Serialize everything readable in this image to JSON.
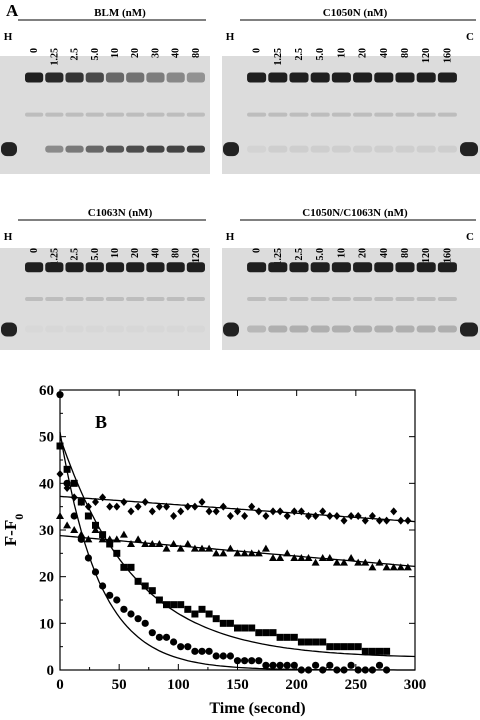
{
  "panel_a": {
    "label": "A",
    "gels": [
      {
        "title": "BLM (nM)",
        "left_label": "H",
        "right_label": "",
        "lanes": [
          "0",
          "1.25",
          "2.5",
          "5.0",
          "10",
          "20",
          "30",
          "40",
          "80"
        ],
        "substrate_intensity": [
          0.95,
          0.9,
          0.85,
          0.75,
          0.6,
          0.55,
          0.5,
          0.45,
          0.4
        ],
        "product_intensity": [
          0.0,
          0.45,
          0.55,
          0.65,
          0.75,
          0.8,
          0.85,
          0.85,
          0.9
        ]
      },
      {
        "title": "C1050N (nM)",
        "left_label": "H",
        "right_label": "C",
        "lanes": [
          "0",
          "1.25",
          "2.5",
          "5.0",
          "10",
          "20",
          "40",
          "80",
          "120",
          "160"
        ],
        "substrate_intensity": [
          0.95,
          0.95,
          0.95,
          0.95,
          0.95,
          0.95,
          0.95,
          0.95,
          0.95,
          0.95
        ],
        "product_intensity": [
          0.05,
          0.08,
          0.08,
          0.08,
          0.08,
          0.08,
          0.08,
          0.08,
          0.08,
          0.08
        ]
      },
      {
        "title": "C1063N (nM)",
        "left_label": "H",
        "right_label": "",
        "lanes": [
          "0",
          "1.25",
          "2.5",
          "5.0",
          "10",
          "20",
          "40",
          "80",
          "120"
        ],
        "substrate_intensity": [
          0.95,
          0.95,
          0.95,
          0.95,
          0.95,
          0.95,
          0.95,
          0.95,
          0.95
        ],
        "product_intensity": [
          0.02,
          0.03,
          0.03,
          0.03,
          0.03,
          0.03,
          0.03,
          0.03,
          0.03
        ]
      },
      {
        "title": "C1050N/C1063N (nM)",
        "left_label": "H",
        "right_label": "C",
        "lanes": [
          "0",
          "1.25",
          "2.5",
          "5.0",
          "10",
          "20",
          "40",
          "80",
          "120",
          "160"
        ],
        "substrate_intensity": [
          0.95,
          0.95,
          0.95,
          0.95,
          0.95,
          0.95,
          0.95,
          0.95,
          0.95,
          0.95
        ],
        "product_intensity": [
          0.2,
          0.25,
          0.25,
          0.25,
          0.25,
          0.25,
          0.25,
          0.25,
          0.25,
          0.25
        ]
      }
    ]
  },
  "chart_data": {
    "type": "scatter",
    "panel_label": "B",
    "title": "",
    "xlabel": "Time (second)",
    "ylabel": "F-F0",
    "xlim": [
      0,
      300
    ],
    "ylim": [
      0,
      60
    ],
    "xticks": [
      0,
      50,
      100,
      150,
      200,
      250,
      300
    ],
    "yticks": [
      0,
      10,
      20,
      30,
      40,
      50,
      60
    ],
    "series": [
      {
        "marker": "diamond",
        "x": [
          0,
          6,
          12,
          18,
          24,
          30,
          36,
          42,
          48,
          54,
          60,
          66,
          72,
          78,
          84,
          90,
          96,
          102,
          108,
          114,
          120,
          126,
          132,
          138,
          144,
          150,
          156,
          162,
          168,
          174,
          180,
          186,
          192,
          198,
          204,
          210,
          216,
          222,
          228,
          234,
          240,
          246,
          252,
          258,
          264,
          270,
          276,
          282,
          288,
          294
        ],
        "y": [
          42,
          39,
          37,
          36,
          35,
          36,
          37,
          35,
          35,
          36,
          34,
          35,
          36,
          34,
          35,
          35,
          33,
          34,
          35,
          35,
          36,
          34,
          34,
          35,
          33,
          34,
          33,
          35,
          34,
          33,
          34,
          34,
          33,
          34,
          34,
          33,
          33,
          34,
          33,
          33,
          32,
          33,
          33,
          32,
          33,
          32,
          32,
          34,
          32,
          32
        ],
        "fit": {
          "model": "linear",
          "intercept": 37.2,
          "slope": -0.018
        }
      },
      {
        "marker": "triangle",
        "x": [
          0,
          6,
          12,
          18,
          24,
          30,
          36,
          42,
          48,
          54,
          60,
          66,
          72,
          78,
          84,
          90,
          96,
          102,
          108,
          114,
          120,
          126,
          132,
          138,
          144,
          150,
          156,
          162,
          168,
          174,
          180,
          186,
          192,
          198,
          204,
          210,
          216,
          222,
          228,
          234,
          240,
          246,
          252,
          258,
          264,
          270,
          276,
          282,
          288,
          294
        ],
        "y": [
          33,
          31,
          30,
          29,
          28,
          30,
          28,
          28,
          28,
          29,
          27,
          28,
          27,
          27,
          27,
          26,
          27,
          26,
          27,
          26,
          26,
          26,
          25,
          25,
          26,
          25,
          25,
          25,
          25,
          26,
          24,
          24,
          25,
          24,
          24,
          24,
          23,
          24,
          24,
          23,
          23,
          24,
          23,
          23,
          22,
          23,
          22,
          22,
          22,
          22
        ],
        "fit": {
          "model": "linear",
          "intercept": 28.8,
          "slope": -0.022
        }
      },
      {
        "marker": "square",
        "x": [
          0,
          6,
          12,
          18,
          24,
          30,
          36,
          42,
          48,
          54,
          60,
          66,
          72,
          78,
          84,
          90,
          96,
          102,
          108,
          114,
          120,
          126,
          132,
          138,
          144,
          150,
          156,
          162,
          168,
          174,
          180,
          186,
          192,
          198,
          204,
          210,
          216,
          222,
          228,
          234,
          240,
          246,
          252,
          258,
          264,
          270,
          276
        ],
        "y": [
          48,
          43,
          40,
          36,
          33,
          31,
          29,
          27,
          25,
          22,
          22,
          19,
          18,
          17,
          15,
          14,
          14,
          14,
          13,
          12,
          13,
          12,
          11,
          10,
          10,
          9,
          9,
          9,
          8,
          8,
          8,
          7,
          7,
          7,
          6,
          6,
          6,
          6,
          5,
          5,
          5,
          5,
          5,
          4,
          4,
          4,
          4
        ],
        "fit": {
          "model": "exp",
          "a": 47.5,
          "k": 0.016,
          "c": 2.5
        }
      },
      {
        "marker": "circle",
        "x": [
          0,
          6,
          12,
          18,
          24,
          30,
          36,
          42,
          48,
          54,
          60,
          66,
          72,
          78,
          84,
          90,
          96,
          102,
          108,
          114,
          120,
          126,
          132,
          138,
          144,
          150,
          156,
          162,
          168,
          174,
          180,
          186,
          192,
          198,
          204,
          210,
          216,
          222,
          228,
          234,
          240,
          246,
          252,
          258,
          264,
          270,
          276
        ],
        "y": [
          59,
          40,
          33,
          28,
          24,
          21,
          18,
          16,
          15,
          13,
          12,
          11,
          10,
          8,
          7,
          7,
          6,
          5,
          5,
          4,
          4,
          4,
          3,
          3,
          3,
          2,
          2,
          2,
          2,
          1,
          1,
          1,
          1,
          1,
          0,
          0,
          1,
          0,
          1,
          0,
          0,
          1,
          0,
          0,
          0,
          1,
          0
        ],
        "fit": {
          "model": "exp",
          "a": 51.0,
          "k": 0.03,
          "c": 0.0
        }
      }
    ]
  }
}
